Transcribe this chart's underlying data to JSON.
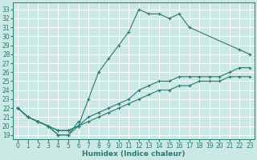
{
  "xlabel": "Humidex (Indice chaleur)",
  "bg_color": "#cce8e4",
  "grid_color": "#b8dbd8",
  "line_color": "#2a7a72",
  "xlim": [
    -0.5,
    23.5
  ],
  "ylim": [
    18.5,
    33.8
  ],
  "xticks": [
    0,
    1,
    2,
    3,
    4,
    5,
    6,
    7,
    8,
    9,
    10,
    11,
    12,
    13,
    14,
    15,
    16,
    17,
    18,
    19,
    20,
    21,
    22,
    23
  ],
  "yticks": [
    19,
    20,
    21,
    22,
    23,
    24,
    25,
    26,
    27,
    28,
    29,
    30,
    31,
    32,
    33
  ],
  "series": [
    {
      "x": [
        0,
        1,
        2,
        3,
        4,
        5,
        6,
        7,
        8,
        9,
        10,
        11,
        12,
        13,
        14,
        15,
        16,
        17,
        22,
        23
      ],
      "y": [
        22,
        21,
        20.5,
        20,
        19,
        19,
        20,
        23,
        26,
        27.5,
        29,
        30.5,
        33,
        32.5,
        32.5,
        32,
        32.5,
        31,
        28.5,
        28
      ]
    },
    {
      "x": [
        0,
        1,
        2,
        3,
        4,
        5,
        6,
        7,
        8,
        9,
        10,
        11,
        12,
        13,
        14,
        15,
        16,
        17,
        18,
        19,
        20,
        21,
        22,
        23
      ],
      "y": [
        22,
        21,
        20.5,
        20,
        19.5,
        19.5,
        20,
        21,
        21.5,
        22,
        22.5,
        23,
        24,
        24.5,
        25,
        25,
        25.5,
        25.5,
        25.5,
        25.5,
        25.5,
        26,
        26.5,
        26.5
      ]
    },
    {
      "x": [
        0,
        1,
        2,
        3,
        4,
        5,
        6,
        7,
        8,
        9,
        10,
        11,
        12,
        13,
        14,
        15,
        16,
        17,
        18,
        19,
        20,
        21,
        22,
        23
      ],
      "y": [
        22,
        21,
        20.5,
        20,
        19.5,
        19.5,
        20,
        20.5,
        21,
        21.5,
        22,
        22.5,
        23,
        23.5,
        24,
        24,
        24.5,
        24.5,
        25,
        25,
        25,
        25.5,
        25.5,
        25.5
      ]
    },
    {
      "x": [
        0,
        1,
        2,
        3,
        4,
        5,
        6
      ],
      "y": [
        22,
        21,
        20.5,
        20,
        19,
        19,
        20.5
      ]
    }
  ],
  "tick_fontsize": 5.5,
  "xlabel_fontsize": 6.5
}
